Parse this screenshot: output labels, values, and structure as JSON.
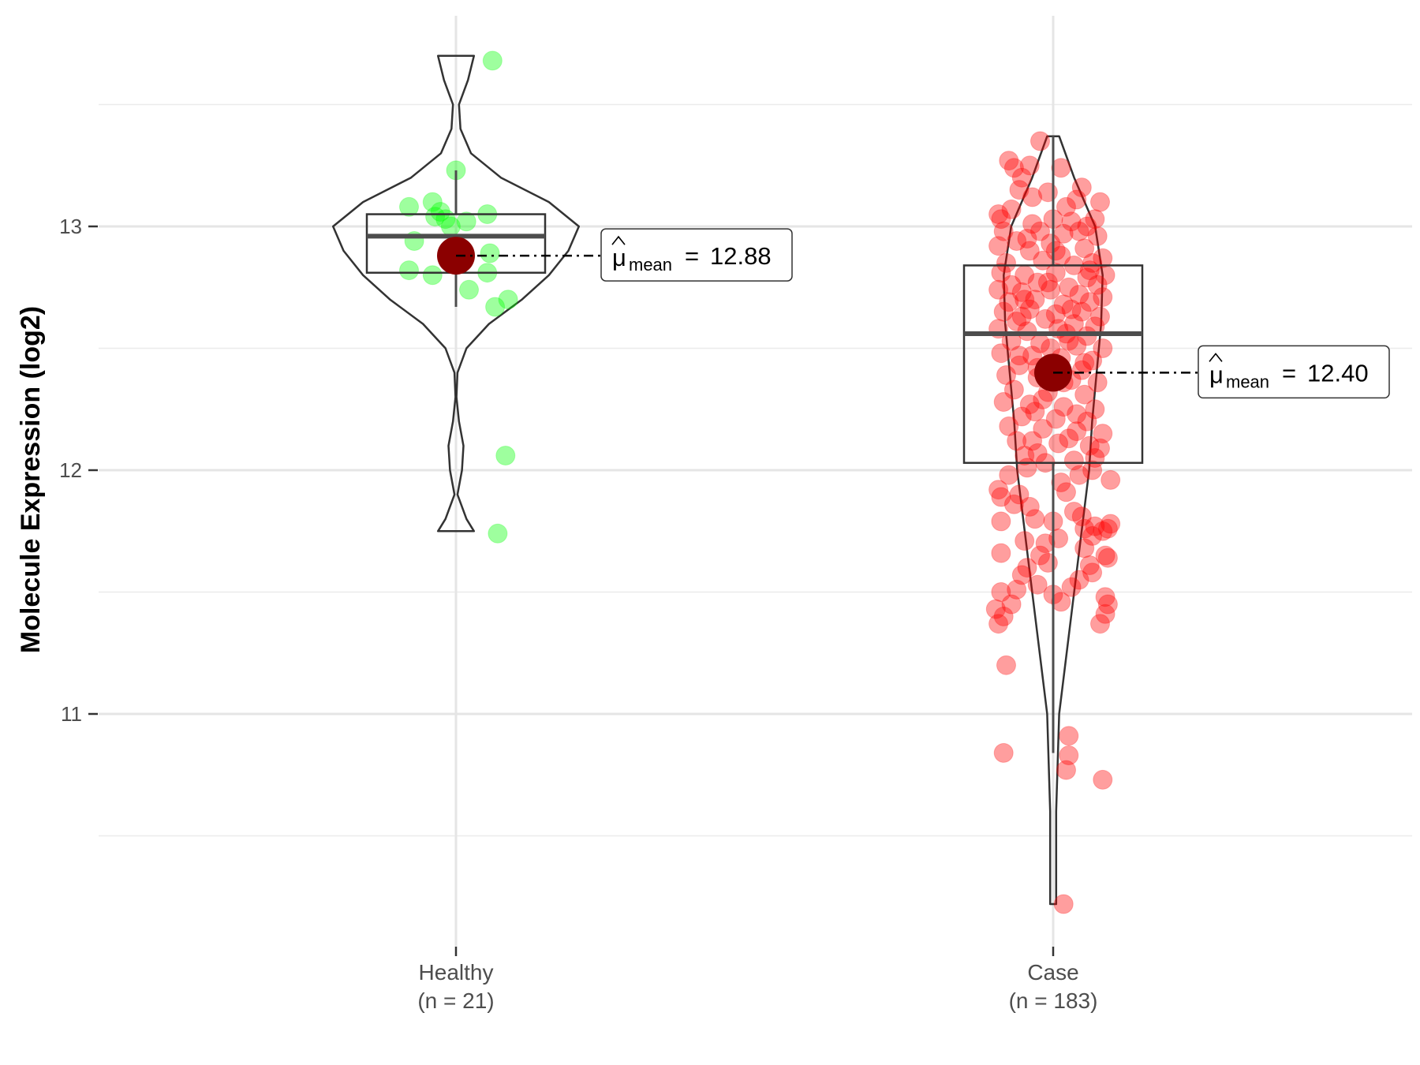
{
  "chart_data": {
    "type": "violin-box-jitter",
    "ylabel": "Molecule Expression (log2)",
    "ylim": [
      10.1,
      13.85
    ],
    "y_ticks": [
      11,
      12,
      13
    ],
    "y_gridlines_minor": [
      10.5,
      11.5,
      12.5,
      13.5
    ],
    "grid": true,
    "groups": [
      {
        "name": "Healthy",
        "n_label": "(n = 21)",
        "point_color": "#00ff00",
        "box": {
          "q1": 12.81,
          "median": 12.96,
          "q3": 13.05,
          "whisker_low": 12.67,
          "whisker_high": 13.23
        },
        "mean": 12.88,
        "mean_label": "12.88",
        "violin": {
          "y": [
            11.75,
            11.8,
            11.9,
            12.0,
            12.1,
            12.2,
            12.3,
            12.4,
            12.5,
            12.6,
            12.7,
            12.8,
            12.9,
            13.0,
            13.1,
            13.2,
            13.3,
            13.4,
            13.5,
            13.6,
            13.7
          ],
          "width": [
            0.12,
            0.07,
            0.01,
            0.04,
            0.05,
            0.02,
            0.003,
            0.01,
            0.07,
            0.22,
            0.44,
            0.62,
            0.75,
            0.82,
            0.62,
            0.3,
            0.1,
            0.03,
            0.02,
            0.08,
            0.12
          ]
        },
        "points": [
          [
            0.14,
            13.68
          ],
          [
            0.0,
            13.23
          ],
          [
            -0.18,
            13.08
          ],
          [
            -0.09,
            13.1
          ],
          [
            -0.06,
            13.06
          ],
          [
            -0.08,
            13.04
          ],
          [
            -0.04,
            13.03
          ],
          [
            0.04,
            13.02
          ],
          [
            0.12,
            13.05
          ],
          [
            -0.16,
            12.94
          ],
          [
            0.13,
            12.89
          ],
          [
            -0.18,
            12.82
          ],
          [
            -0.09,
            12.8
          ],
          [
            0.12,
            12.81
          ],
          [
            0.05,
            12.74
          ],
          [
            0.2,
            12.7
          ],
          [
            0.15,
            12.67
          ],
          [
            0.19,
            12.06
          ],
          [
            0.16,
            11.74
          ],
          [
            -0.02,
            13.0
          ],
          [
            0.02,
            12.85
          ]
        ]
      },
      {
        "name": "Case",
        "n_label": "(n = 183)",
        "point_color": "#ff0000",
        "box": {
          "q1": 12.03,
          "median": 12.56,
          "q3": 12.84,
          "whisker_low": 10.84,
          "whisker_high": 13.37
        },
        "mean": 12.4,
        "mean_label": "12.40",
        "violin": {
          "y": [
            10.22,
            10.4,
            10.6,
            10.8,
            11.0,
            11.2,
            11.4,
            11.6,
            11.8,
            12.0,
            12.2,
            12.4,
            12.6,
            12.8,
            13.0,
            13.2,
            13.37
          ],
          "width": [
            0.02,
            0.02,
            0.02,
            0.03,
            0.04,
            0.08,
            0.12,
            0.16,
            0.2,
            0.24,
            0.26,
            0.29,
            0.32,
            0.33,
            0.28,
            0.14,
            0.04
          ]
        },
        "points": [
          [
            -0.05,
            13.35
          ],
          [
            -0.17,
            13.27
          ],
          [
            -0.15,
            13.24
          ],
          [
            -0.09,
            13.25
          ],
          [
            -0.12,
            13.2
          ],
          [
            0.03,
            13.24
          ],
          [
            -0.13,
            13.15
          ],
          [
            0.09,
            13.11
          ],
          [
            0.18,
            13.1
          ],
          [
            -0.21,
            13.05
          ],
          [
            -0.2,
            13.03
          ],
          [
            -0.08,
            13.01
          ],
          [
            0.0,
            13.03
          ],
          [
            0.07,
            13.02
          ],
          [
            0.13,
            13.0
          ],
          [
            0.16,
            13.03
          ],
          [
            -0.19,
            12.98
          ],
          [
            -0.05,
            12.98
          ],
          [
            0.04,
            12.97
          ],
          [
            0.1,
            12.98
          ],
          [
            0.17,
            12.96
          ],
          [
            -0.21,
            12.92
          ],
          [
            -0.14,
            12.94
          ],
          [
            -0.01,
            12.93
          ],
          [
            0.12,
            12.91
          ],
          [
            -0.09,
            12.9
          ],
          [
            0.03,
            12.88
          ],
          [
            0.19,
            12.87
          ],
          [
            -0.18,
            12.85
          ],
          [
            -0.04,
            12.86
          ],
          [
            0.08,
            12.84
          ],
          [
            0.15,
            12.85
          ],
          [
            -0.2,
            12.81
          ],
          [
            -0.11,
            12.8
          ],
          [
            0.01,
            12.81
          ],
          [
            0.13,
            12.79
          ],
          [
            0.2,
            12.8
          ],
          [
            -0.16,
            12.76
          ],
          [
            -0.06,
            12.77
          ],
          [
            0.06,
            12.75
          ],
          [
            0.17,
            12.76
          ],
          [
            -0.21,
            12.74
          ],
          [
            -0.12,
            12.73
          ],
          [
            -0.01,
            12.74
          ],
          [
            0.1,
            12.72
          ],
          [
            0.19,
            12.71
          ],
          [
            -0.17,
            12.69
          ],
          [
            -0.07,
            12.7
          ],
          [
            0.04,
            12.68
          ],
          [
            0.14,
            12.69
          ],
          [
            -0.19,
            12.65
          ],
          [
            -0.09,
            12.66
          ],
          [
            0.01,
            12.64
          ],
          [
            0.11,
            12.65
          ],
          [
            0.18,
            12.63
          ],
          [
            -0.14,
            12.61
          ],
          [
            -0.03,
            12.62
          ],
          [
            0.08,
            12.6
          ],
          [
            0.16,
            12.59
          ],
          [
            -0.21,
            12.58
          ],
          [
            -0.1,
            12.57
          ],
          [
            0.05,
            12.56
          ],
          [
            0.13,
            12.55
          ],
          [
            -0.16,
            12.53
          ],
          [
            -0.05,
            12.52
          ],
          [
            0.09,
            12.51
          ],
          [
            0.19,
            12.5
          ],
          [
            -0.2,
            12.48
          ],
          [
            -0.08,
            12.47
          ],
          [
            0.03,
            12.46
          ],
          [
            0.15,
            12.45
          ],
          [
            -0.13,
            12.43
          ],
          [
            0.0,
            12.42
          ],
          [
            0.11,
            12.41
          ],
          [
            -0.18,
            12.39
          ],
          [
            -0.06,
            12.38
          ],
          [
            0.07,
            12.37
          ],
          [
            0.17,
            12.36
          ],
          [
            -0.15,
            12.33
          ],
          [
            -0.02,
            12.32
          ],
          [
            0.12,
            12.31
          ],
          [
            -0.19,
            12.28
          ],
          [
            -0.09,
            12.27
          ],
          [
            0.04,
            12.26
          ],
          [
            0.16,
            12.25
          ],
          [
            -0.12,
            12.22
          ],
          [
            0.01,
            12.21
          ],
          [
            0.13,
            12.2
          ],
          [
            -0.17,
            12.18
          ],
          [
            -0.04,
            12.17
          ],
          [
            0.09,
            12.16
          ],
          [
            0.19,
            12.15
          ],
          [
            -0.14,
            12.12
          ],
          [
            0.02,
            12.11
          ],
          [
            0.14,
            12.1
          ],
          [
            -0.06,
            12.07
          ],
          [
            0.18,
            12.09
          ],
          [
            -0.03,
            12.03
          ],
          [
            0.08,
            12.04
          ],
          [
            -0.1,
            12.01
          ],
          [
            0.15,
            12.0
          ],
          [
            0.22,
            11.96
          ],
          [
            -0.21,
            11.92
          ],
          [
            -0.2,
            11.89
          ],
          [
            -0.13,
            11.9
          ],
          [
            0.05,
            11.91
          ],
          [
            -0.2,
            11.79
          ],
          [
            -0.07,
            11.8
          ],
          [
            0.0,
            11.79
          ],
          [
            0.12,
            11.76
          ],
          [
            0.16,
            11.77
          ],
          [
            0.19,
            11.75
          ],
          [
            0.22,
            11.78
          ],
          [
            0.15,
            11.73
          ],
          [
            0.21,
            11.76
          ],
          [
            -0.11,
            11.71
          ],
          [
            0.02,
            11.72
          ],
          [
            0.12,
            11.68
          ],
          [
            -0.2,
            11.66
          ],
          [
            -0.05,
            11.65
          ],
          [
            0.2,
            11.65
          ],
          [
            0.21,
            11.64
          ],
          [
            0.14,
            11.61
          ],
          [
            -0.1,
            11.6
          ],
          [
            0.15,
            11.58
          ],
          [
            -0.2,
            11.5
          ],
          [
            -0.14,
            11.51
          ],
          [
            -0.06,
            11.53
          ],
          [
            0.0,
            11.49
          ],
          [
            0.2,
            11.48
          ],
          [
            -0.22,
            11.43
          ],
          [
            -0.16,
            11.45
          ],
          [
            0.21,
            11.45
          ],
          [
            -0.19,
            11.4
          ],
          [
            0.2,
            11.41
          ],
          [
            -0.21,
            11.37
          ],
          [
            0.18,
            11.37
          ],
          [
            -0.18,
            11.2
          ],
          [
            -0.19,
            10.84
          ],
          [
            0.06,
            10.91
          ],
          [
            0.06,
            10.83
          ],
          [
            0.05,
            10.77
          ],
          [
            0.19,
            10.73
          ],
          [
            0.04,
            10.22
          ],
          [
            -0.02,
            13.14
          ],
          [
            0.05,
            13.08
          ],
          [
            -0.1,
            12.95
          ],
          [
            0.01,
            12.9
          ],
          [
            -0.12,
            12.63
          ],
          [
            0.07,
            12.66
          ],
          [
            -0.01,
            12.5
          ],
          [
            0.04,
            12.36
          ],
          [
            -0.07,
            12.24
          ],
          [
            0.06,
            12.13
          ],
          [
            -0.11,
            12.06
          ],
          [
            0.1,
            11.98
          ],
          [
            -0.15,
            11.86
          ],
          [
            0.08,
            11.83
          ],
          [
            -0.03,
            11.7
          ],
          [
            0.1,
            11.55
          ],
          [
            -0.12,
            11.57
          ],
          [
            0.03,
            11.46
          ],
          [
            -0.08,
            13.12
          ],
          [
            0.11,
            13.16
          ],
          [
            -0.16,
            13.07
          ],
          [
            0.14,
            12.82
          ],
          [
            -0.02,
            12.77
          ],
          [
            0.06,
            12.53
          ],
          [
            -0.13,
            12.47
          ],
          [
            0.12,
            12.44
          ],
          [
            -0.04,
            12.29
          ],
          [
            0.09,
            12.23
          ],
          [
            -0.08,
            12.12
          ],
          [
            0.16,
            12.05
          ],
          [
            -0.17,
            11.98
          ],
          [
            0.03,
            11.95
          ],
          [
            -0.09,
            11.85
          ],
          [
            0.11,
            11.81
          ],
          [
            -0.02,
            11.62
          ],
          [
            0.07,
            11.52
          ],
          [
            -0.11,
            12.7
          ],
          [
            0.02,
            12.58
          ],
          [
            -0.06,
            12.42
          ]
        ]
      }
    ]
  }
}
